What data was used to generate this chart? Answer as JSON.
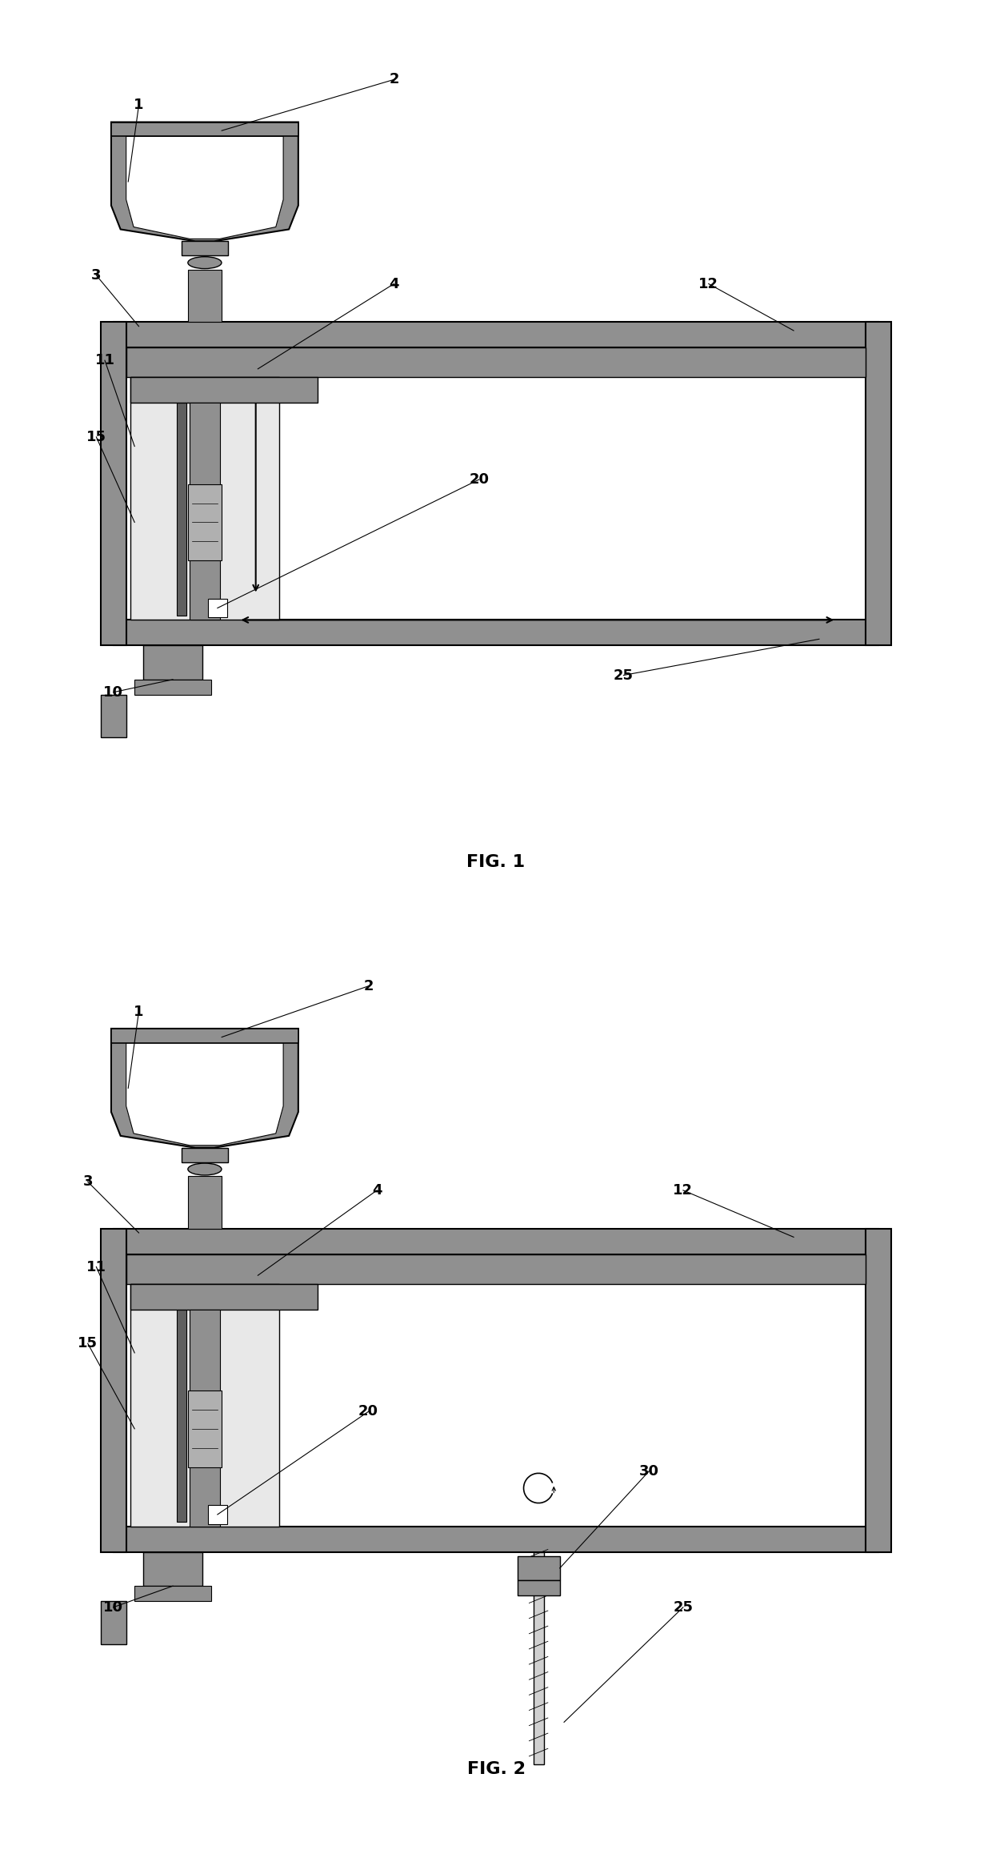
{
  "fig1_caption": "FIG. 1",
  "fig2_caption": "FIG. 2",
  "bg_color": "#ffffff",
  "lc": "#000000",
  "gray_light": "#d0d0d0",
  "gray_medium": "#909090",
  "gray_dark": "#606060",
  "gray_fill": "#b0b0b0",
  "gray_frame_bg": "#e8e8e8"
}
